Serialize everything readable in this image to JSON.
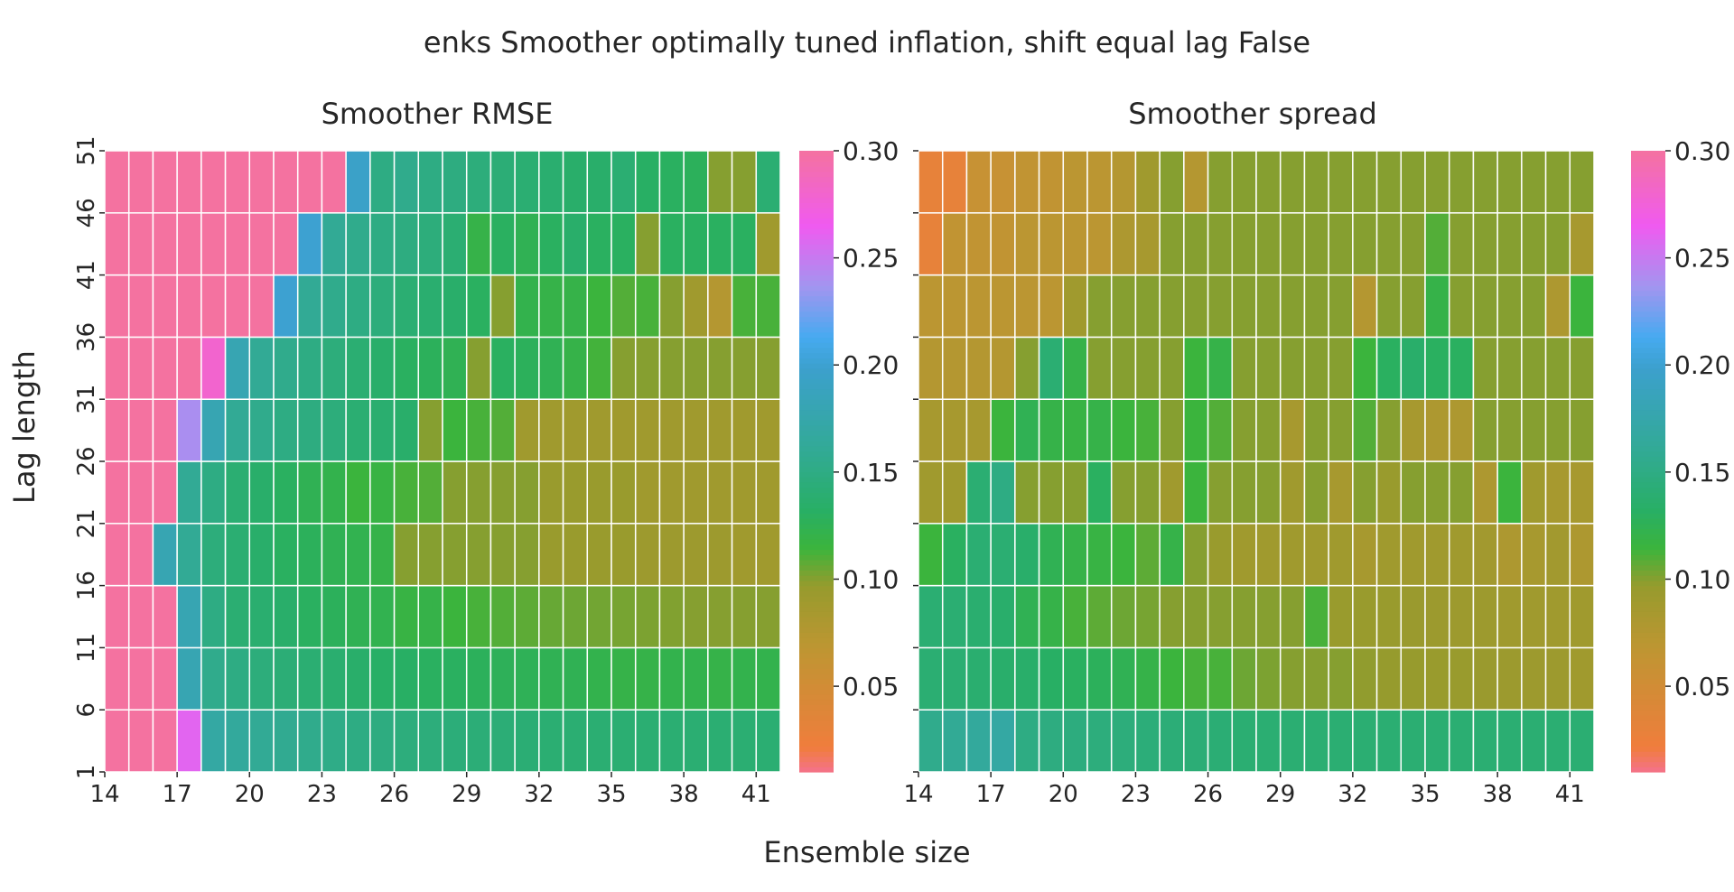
{
  "figure": {
    "suptitle": "enks Smoother optimally tuned inflation, shift equal lag False",
    "xlabel": "Ensemble size",
    "ylabel": "Lag length"
  },
  "chart_data": [
    {
      "type": "heatmap",
      "title": "Smoother RMSE",
      "x_ticks": [
        "14",
        "17",
        "20",
        "23",
        "26",
        "29",
        "32",
        "35",
        "38",
        "41"
      ],
      "y_ticks": [
        "1",
        "6",
        "11",
        "16",
        "21",
        "26",
        "31",
        "36",
        "41",
        "46",
        "51"
      ],
      "x_range": [
        14,
        42
      ],
      "y_range": [
        1,
        51
      ],
      "n_cols": 28,
      "n_rows": 10,
      "value_range": [
        0.01,
        0.3
      ],
      "colorbar_ticks": [
        "0.05",
        "0.10",
        "0.15",
        "0.20",
        "0.25",
        "0.30"
      ],
      "rows_bottom_to_top": [
        [
          0.3,
          0.3,
          0.3,
          0.26,
          0.17,
          0.165,
          0.16,
          0.158,
          0.155,
          0.152,
          0.15,
          0.148,
          0.146,
          0.145,
          0.144,
          0.143,
          0.142,
          0.141,
          0.14,
          0.14,
          0.14,
          0.14,
          0.14,
          0.14,
          0.14,
          0.14,
          0.14,
          0.14
        ],
        [
          0.3,
          0.3,
          0.3,
          0.18,
          0.155,
          0.15,
          0.145,
          0.142,
          0.14,
          0.138,
          0.135,
          0.133,
          0.132,
          0.13,
          0.13,
          0.128,
          0.127,
          0.126,
          0.125,
          0.125,
          0.122,
          0.12,
          0.12,
          0.122,
          0.122,
          0.12,
          0.122,
          0.122
        ],
        [
          0.3,
          0.3,
          0.3,
          0.18,
          0.15,
          0.14,
          0.138,
          0.135,
          0.13,
          0.128,
          0.125,
          0.123,
          0.118,
          0.12,
          0.115,
          0.112,
          0.11,
          0.108,
          0.106,
          0.105,
          0.104,
          0.103,
          0.102,
          0.101,
          0.1,
          0.1,
          0.1,
          0.1
        ],
        [
          0.3,
          0.3,
          0.18,
          0.16,
          0.145,
          0.14,
          0.135,
          0.13,
          0.128,
          0.125,
          0.123,
          0.12,
          0.1,
          0.1,
          0.1,
          0.1,
          0.1,
          0.1,
          0.095,
          0.095,
          0.095,
          0.095,
          0.092,
          0.092,
          0.092,
          0.092,
          0.09,
          0.09
        ],
        [
          0.3,
          0.3,
          0.3,
          0.16,
          0.15,
          0.14,
          0.135,
          0.13,
          0.125,
          0.122,
          0.115,
          0.118,
          0.112,
          0.11,
          0.1,
          0.1,
          0.1,
          0.1,
          0.095,
          0.095,
          0.095,
          0.095,
          0.09,
          0.09,
          0.09,
          0.09,
          0.09,
          0.09
        ],
        [
          0.3,
          0.3,
          0.3,
          0.24,
          0.18,
          0.16,
          0.155,
          0.15,
          0.148,
          0.145,
          0.14,
          0.138,
          0.135,
          0.1,
          0.115,
          0.112,
          0.11,
          0.09,
          0.09,
          0.09,
          0.09,
          0.09,
          0.09,
          0.09,
          0.09,
          0.09,
          0.09,
          0.09
        ],
        [
          0.3,
          0.3,
          0.3,
          0.3,
          0.28,
          0.18,
          0.16,
          0.155,
          0.15,
          0.145,
          0.14,
          0.135,
          0.13,
          0.128,
          0.125,
          0.1,
          0.13,
          0.128,
          0.125,
          0.12,
          0.113,
          0.1,
          0.1,
          0.1,
          0.1,
          0.1,
          0.1,
          0.1
        ],
        [
          0.3,
          0.3,
          0.3,
          0.3,
          0.3,
          0.3,
          0.3,
          0.2,
          0.16,
          0.155,
          0.15,
          0.145,
          0.14,
          0.138,
          0.135,
          0.13,
          0.1,
          0.122,
          0.12,
          0.12,
          0.115,
          0.11,
          0.112,
          0.1,
          0.09,
          0.075,
          0.112,
          0.112
        ],
        [
          0.3,
          0.3,
          0.3,
          0.3,
          0.3,
          0.3,
          0.3,
          0.3,
          0.2,
          0.16,
          0.155,
          0.15,
          0.148,
          0.145,
          0.14,
          0.12,
          0.13,
          0.125,
          0.13,
          0.135,
          0.13,
          0.13,
          0.1,
          0.13,
          0.13,
          0.13,
          0.13,
          0.09
        ],
        [
          0.3,
          0.3,
          0.3,
          0.3,
          0.3,
          0.3,
          0.3,
          0.3,
          0.3,
          0.3,
          0.195,
          0.15,
          0.155,
          0.15,
          0.148,
          0.145,
          0.142,
          0.14,
          0.138,
          0.135,
          0.135,
          0.14,
          0.132,
          0.13,
          0.128,
          0.1,
          0.1,
          0.14
        ]
      ]
    },
    {
      "type": "heatmap",
      "title": "Smoother spread",
      "x_ticks": [
        "14",
        "17",
        "20",
        "23",
        "26",
        "29",
        "32",
        "35",
        "38",
        "41"
      ],
      "y_ticks": [
        "",
        "",
        "",
        "",
        "",
        "",
        "",
        "",
        "",
        "",
        ""
      ],
      "x_range": [
        14,
        42
      ],
      "y_range": [
        1,
        51
      ],
      "n_cols": 28,
      "n_rows": 10,
      "value_range": [
        0.01,
        0.3
      ],
      "colorbar_ticks": [
        "0.05",
        "0.10",
        "0.15",
        "0.20",
        "0.25",
        "0.30"
      ],
      "rows_bottom_to_top": [
        [
          0.155,
          0.16,
          0.165,
          0.17,
          0.15,
          0.148,
          0.147,
          0.146,
          0.145,
          0.144,
          0.143,
          0.142,
          0.141,
          0.14,
          0.14,
          0.14,
          0.14,
          0.14,
          0.14,
          0.14,
          0.14,
          0.14,
          0.14,
          0.14,
          0.14,
          0.14,
          0.14,
          0.14
        ],
        [
          0.14,
          0.14,
          0.138,
          0.136,
          0.135,
          0.132,
          0.13,
          0.128,
          0.125,
          0.12,
          0.115,
          0.112,
          0.112,
          0.105,
          0.102,
          0.1,
          0.1,
          0.1,
          0.098,
          0.097,
          0.096,
          0.095,
          0.095,
          0.094,
          0.093,
          0.092,
          0.092,
          0.09
        ],
        [
          0.14,
          0.14,
          0.138,
          0.136,
          0.125,
          0.12,
          0.112,
          0.108,
          0.105,
          0.103,
          0.1,
          0.1,
          0.1,
          0.1,
          0.1,
          0.1,
          0.112,
          0.095,
          0.095,
          0.095,
          0.094,
          0.093,
          0.092,
          0.092,
          0.09,
          0.09,
          0.09,
          0.09
        ],
        [
          0.115,
          0.13,
          0.14,
          0.14,
          0.135,
          0.125,
          0.12,
          0.118,
          0.115,
          0.108,
          0.12,
          0.1,
          0.095,
          0.09,
          0.09,
          0.09,
          0.09,
          0.09,
          0.085,
          0.09,
          0.09,
          0.09,
          0.09,
          0.088,
          0.08,
          0.085,
          0.088,
          0.08
        ],
        [
          0.09,
          0.09,
          0.14,
          0.15,
          0.1,
          0.1,
          0.1,
          0.13,
          0.1,
          0.1,
          0.09,
          0.115,
          0.1,
          0.1,
          0.1,
          0.09,
          0.1,
          0.085,
          0.1,
          0.095,
          0.1,
          0.1,
          0.1,
          0.08,
          0.115,
          0.09,
          0.085,
          0.085
        ],
        [
          0.085,
          0.085,
          0.085,
          0.115,
          0.125,
          0.12,
          0.118,
          0.12,
          0.115,
          0.112,
          0.1,
          0.115,
          0.11,
          0.1,
          0.1,
          0.085,
          0.1,
          0.1,
          0.11,
          0.1,
          0.085,
          0.08,
          0.08,
          0.1,
          0.1,
          0.1,
          0.1,
          0.1
        ],
        [
          0.075,
          0.075,
          0.075,
          0.075,
          0.1,
          0.14,
          0.12,
          0.1,
          0.1,
          0.1,
          0.1,
          0.115,
          0.12,
          0.1,
          0.1,
          0.1,
          0.1,
          0.1,
          0.115,
          0.13,
          0.135,
          0.13,
          0.13,
          0.1,
          0.1,
          0.1,
          0.1,
          0.1
        ],
        [
          0.07,
          0.07,
          0.07,
          0.07,
          0.07,
          0.07,
          0.09,
          0.1,
          0.1,
          0.1,
          0.1,
          0.1,
          0.1,
          0.1,
          0.1,
          0.1,
          0.1,
          0.1,
          0.075,
          0.1,
          0.1,
          0.12,
          0.1,
          0.1,
          0.1,
          0.1,
          0.08,
          0.115
        ],
        [
          0.03,
          0.065,
          0.065,
          0.065,
          0.07,
          0.07,
          0.07,
          0.07,
          0.08,
          0.085,
          0.1,
          0.1,
          0.1,
          0.1,
          0.1,
          0.1,
          0.1,
          0.1,
          0.1,
          0.1,
          0.1,
          0.11,
          0.1,
          0.1,
          0.1,
          0.1,
          0.1,
          0.085
        ],
        [
          0.03,
          0.03,
          0.06,
          0.06,
          0.065,
          0.065,
          0.07,
          0.07,
          0.075,
          0.09,
          0.1,
          0.075,
          0.1,
          0.1,
          0.1,
          0.1,
          0.1,
          0.1,
          0.1,
          0.1,
          0.1,
          0.1,
          0.1,
          0.1,
          0.1,
          0.1,
          0.1,
          0.1
        ]
      ]
    }
  ]
}
